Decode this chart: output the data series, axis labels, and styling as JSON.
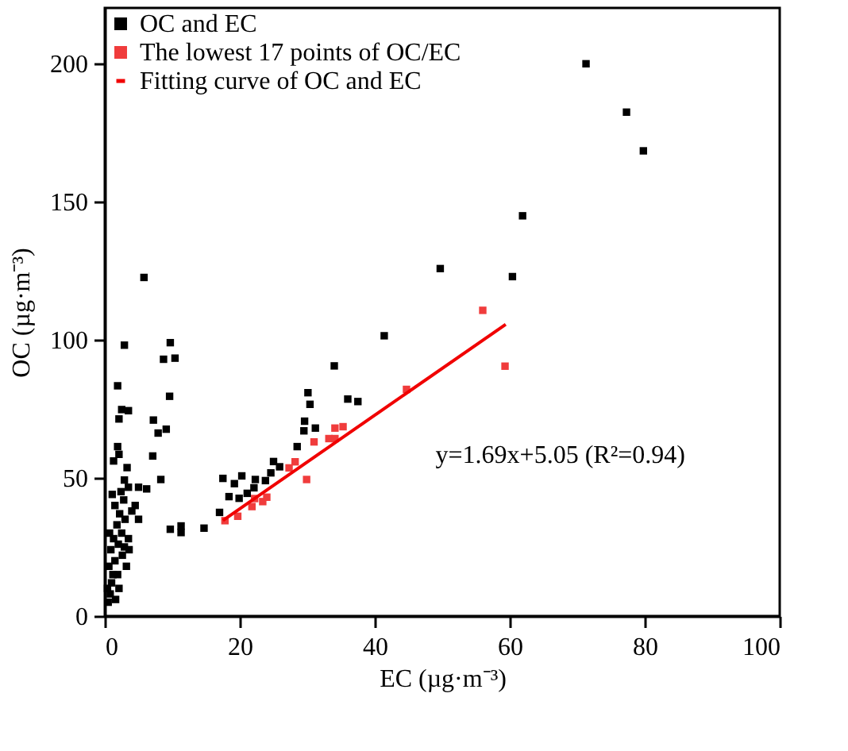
{
  "chart_data": {
    "type": "scatter",
    "xlabel": "EC (µg·m⁻³)",
    "ylabel": "OC (µg·m⁻³)",
    "xlim": [
      0,
      100
    ],
    "xticks": [
      0,
      20,
      40,
      60,
      80,
      100
    ],
    "ylim": [
      0,
      220
    ],
    "yticks": [
      0,
      50,
      100,
      150,
      200
    ],
    "grid": false,
    "legend": "top left",
    "marker": "square",
    "annotations": [
      "y=1.69x+5.05 (R²=0.94)"
    ],
    "series": [
      {
        "name": "OC and EC",
        "color": "#000000",
        "x": [
          71.3,
          77.3,
          79.8,
          61.9,
          49.7,
          60.4,
          41.4,
          5.8,
          2.9,
          9.7,
          8.7,
          10.4,
          1.9,
          9.6,
          2.5,
          3.5,
          2.1,
          7.2,
          9.1,
          7.9,
          1.9,
          2.1,
          1.3,
          7.1,
          3.3,
          2.9,
          8.3,
          3.5,
          5.0,
          6.2,
          9.7,
          11.3,
          11.3,
          14.7,
          17.0,
          17.5,
          19.2,
          20.3,
          18.4,
          19.9,
          21.1,
          22.1,
          22.3,
          23.8,
          24.6,
          25.0,
          25.9,
          28.5,
          29.5,
          29.6,
          30.1,
          30.4,
          31.2,
          34.0,
          36.0,
          37.5,
          0.5,
          0.8,
          1.0,
          1.2,
          0.6,
          1.5,
          0.9,
          2.0,
          1.3,
          2.5,
          1.8,
          3.0,
          2.2,
          1.5,
          2.8,
          3.5,
          4.0,
          4.5,
          5.0,
          0.4,
          2.6,
          3.2,
          1.1,
          2.4,
          0.7,
          1.9,
          2.9,
          1.6,
          2.1,
          3.6
        ],
        "values": [
          199.8,
          182.3,
          168.3,
          144.8,
          125.7,
          122.8,
          101.4,
          122.5,
          98.0,
          98.9,
          92.9,
          93.3,
          83.3,
          79.5,
          74.7,
          74.3,
          71.3,
          70.9,
          67.6,
          66.2,
          61.3,
          58.5,
          56.1,
          57.9,
          53.7,
          49.2,
          49.4,
          46.6,
          46.6,
          46.0,
          31.4,
          32.6,
          30.2,
          31.8,
          37.5,
          49.8,
          47.9,
          50.7,
          43.2,
          42.6,
          44.4,
          46.4,
          49.4,
          49.0,
          51.8,
          55.9,
          54.0,
          61.3,
          67.0,
          70.5,
          80.8,
          76.6,
          68.0,
          90.5,
          78.5,
          77.6,
          5,
          8,
          12,
          15,
          18,
          20,
          24,
          26,
          28,
          30,
          33,
          35,
          37,
          40,
          42,
          28,
          38,
          40,
          35,
          10,
          22,
          18,
          44,
          45,
          30,
          15,
          25,
          6,
          10,
          24
        ]
      },
      {
        "name": "The lowest 17 points of OC/EC",
        "color": "#f03c3c",
        "x": [
          17.8,
          19.7,
          21.8,
          23.4,
          22.2,
          28.2,
          27.3,
          29.9,
          33.2,
          34.1,
          34.1,
          35.3,
          44.7,
          59.3,
          56.0,
          24.0,
          31.0
        ],
        "values": [
          34.5,
          36.1,
          39.6,
          41.4,
          42.5,
          55.8,
          53.6,
          49.4,
          64.2,
          64.2,
          68.0,
          68.5,
          82.0,
          90.4,
          110.6,
          43.0,
          63.0
        ]
      },
      {
        "name": "Fitting curve of OC and EC",
        "type": "line",
        "color": "#f00000",
        "marker": "none",
        "x": [
          17.5,
          59.4
        ],
        "values": [
          34.6,
          105.5
        ]
      }
    ]
  }
}
